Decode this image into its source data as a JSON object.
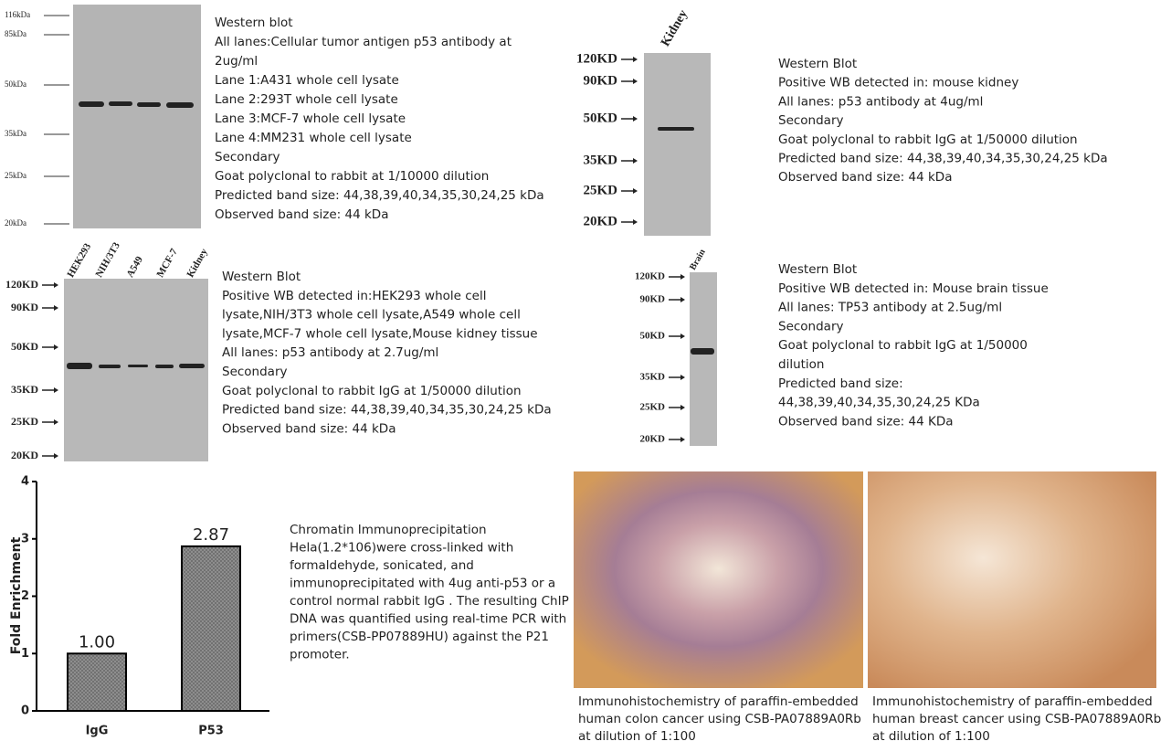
{
  "blot1": {
    "markers": [
      "116kDa",
      "85kDa",
      "50kDa",
      "35kDa",
      "25kDa",
      "20kDa"
    ],
    "text": [
      "Western blot",
      "All lanes:Cellular tumor antigen p53 antibody at",
      "2ug/ml",
      "Lane 1:A431  whole cell lysate",
      "Lane 2:293T  whole cell lysate",
      "Lane 3:MCF-7 whole cell lysate",
      "Lane 4:MM231  whole cell lysate",
      "Secondary",
      "Goat polyclonal to rabbit at 1/10000  dilution",
      "Predicted band size: 44,38,39,40,34,35,30,24,25  kDa",
      "Observed band size: 44  kDa"
    ]
  },
  "blot2": {
    "lanes": [
      "Kidney"
    ],
    "markers": [
      "120KD",
      "90KD",
      "50KD",
      "35KD",
      "25KD",
      "20KD"
    ],
    "text": [
      "Western Blot",
      "Positive WB detected in: mouse kidney",
      "All lanes: p53 antibody at 4ug/ml",
      "Secondary",
      "Goat polyclonal to rabbit IgG at 1/50000  dilution",
      "Predicted band size: 44,38,39,40,34,35,30,24,25  kDa",
      "Observed band size: 44  kDa"
    ]
  },
  "blot3": {
    "lanes": [
      "HEK293",
      "NIH/3T3",
      "A549",
      "MCF-7",
      "Kidney"
    ],
    "markers": [
      "120KD",
      "90KD",
      "50KD",
      "35KD",
      "25KD",
      "20KD"
    ],
    "text": [
      "Western Blot",
      "Positive WB detected in:HEK293  whole cell",
      "lysate,NIH/3T3 whole cell lysate,A549 whole cell",
      "lysate,MCF-7 whole cell lysate,Mouse kidney tissue",
      "All lanes: p53 antibody at 2.7ug/ml",
      "Secondary",
      "Goat polyclonal to rabbit IgG at 1/50000  dilution",
      "Predicted band size: 44,38,39,40,34,35,30,24,25  kDa",
      "Observed band size: 44  kDa"
    ]
  },
  "blot4": {
    "lanes": [
      "Brain"
    ],
    "markers": [
      "120KD",
      "90KD",
      "50KD",
      "35KD",
      "25KD",
      "20KD"
    ],
    "text": [
      "Western Blot",
      "Positive WB detected in:   Mouse brain tissue",
      "All lanes:   TP53 antibody at 2.5ug/ml",
      "Secondary",
      "Goat polyclonal to rabbit IgG at 1/50000",
      "dilution",
      "Predicted band size:",
      "44,38,39,40,34,35,30,24,25  KDa",
      "Observed band size: 44  KDa"
    ]
  },
  "chart_data": {
    "type": "bar",
    "ylabel": "Fold Enrichment",
    "categories": [
      "IgG",
      "P53"
    ],
    "values": [
      1,
      2.87
    ],
    "value_labels": [
      "1.00",
      "2.87"
    ],
    "color": "#8a8a8a",
    "ylim": [
      0,
      4
    ],
    "yticks": [
      0,
      1,
      2,
      3,
      4
    ]
  },
  "chip_text": [
    "Chromatin Immunoprecipitation",
    "Hela(1.2*106)were cross-linked with",
    "formaldehyde, sonicated, and",
    "immunoprecipitated with 4ug anti-p53 or a",
    "control normal rabbit IgG . The resulting ChIP",
    "DNA was quantified using real-time PCR with",
    "primers(CSB-PP07889HU) against the P21",
    "promoter."
  ],
  "ihc": [
    {
      "caption": [
        "Immunohistochemistry of paraffin-embedded",
        "human colon cancer using CSB-PA07889A0Rb",
        "at dilution  of 1:100"
      ]
    },
    {
      "caption": [
        "Immunohistochemistry of paraffin-embedded",
        "human breast cancer using CSB-PA07889A0Rb",
        "at dilution  of 1:100"
      ]
    }
  ]
}
